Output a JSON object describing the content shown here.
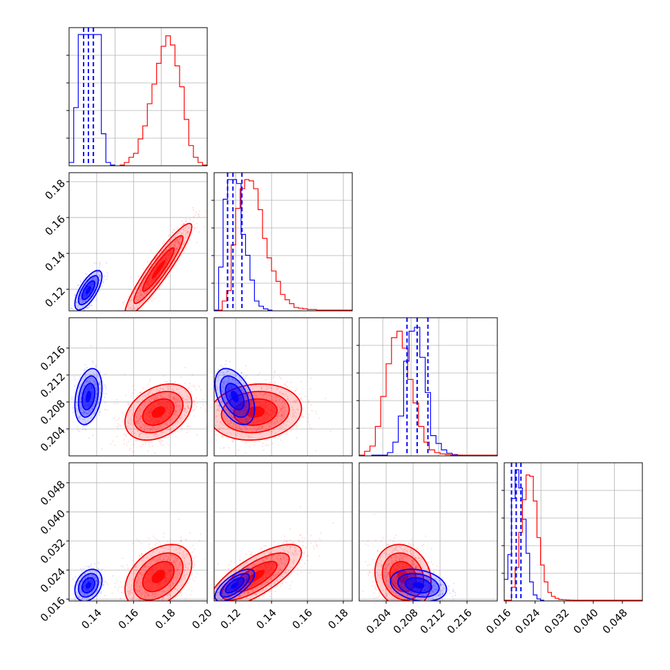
{
  "chart_data": {
    "type": "corner",
    "colors": {
      "blue": "#0000ff",
      "red": "#ff0000",
      "grid": "#b0b0b0"
    },
    "n_params": 4,
    "params": [
      {
        "range": [
          0.125,
          0.2
        ],
        "ticks": [
          0.14,
          0.16,
          0.18,
          0.2
        ],
        "tick_labels": [
          "0.14",
          "0.16",
          "0.18",
          "0.20"
        ]
      },
      {
        "range": [
          0.108,
          0.185
        ],
        "ticks": [
          0.12,
          0.14,
          0.16,
          0.18
        ],
        "tick_labels": [
          "0.12",
          "0.14",
          "0.16",
          "0.18"
        ]
      },
      {
        "range": [
          0.2,
          0.2205
        ],
        "ticks": [
          0.204,
          0.208,
          0.212,
          0.216
        ],
        "tick_labels": [
          "0.204",
          "0.208",
          "0.212",
          "0.216"
        ]
      },
      {
        "range": [
          0.0155,
          0.0535
        ],
        "ticks": [
          0.016,
          0.024,
          0.032,
          0.04,
          0.048
        ],
        "tick_labels": [
          "0.016",
          "0.024",
          "0.032",
          "0.040",
          "0.048"
        ]
      }
    ],
    "diag": [
      {
        "grid_x": [
          0.125,
          0.15,
          0.175,
          0.2
        ],
        "series": [
          {
            "name": "",
            "color": "#0000ff",
            "edges": [
              0.125,
              0.1275,
              0.13,
              0.1325,
              0.135,
              0.1375,
              0.14,
              0.1425,
              0.145,
              0.1475,
              0.15
            ],
            "counts": [
              0.02,
              0.44,
              1.0,
              1.0,
              1.0,
              1.0,
              1.0,
              0.24,
              0.02,
              0.0
            ],
            "quantiles": [
              0.1329,
              0.1355,
              0.1382
            ]
          },
          {
            "name": "",
            "color": "#ff0000",
            "edges": [
              0.1525,
              0.155,
              0.1575,
              0.16,
              0.1625,
              0.165,
              0.1675,
              0.17,
              0.1725,
              0.175,
              0.1775,
              0.18,
              0.1825,
              0.185,
              0.1875,
              0.19,
              0.1925,
              0.195,
              0.1975,
              0.2
            ],
            "counts": [
              0.0,
              0.02,
              0.06,
              0.09,
              0.2,
              0.3,
              0.47,
              0.62,
              0.78,
              0.91,
              0.99,
              0.92,
              0.76,
              0.6,
              0.35,
              0.15,
              0.06,
              0.02,
              0.0
            ]
          }
        ]
      },
      {
        "grid_x": [
          0.12,
          0.14,
          0.16,
          0.18
        ],
        "series": [
          {
            "name": "",
            "color": "#0000ff",
            "edges": [
              0.108,
              0.1105,
              0.113,
              0.1155,
              0.118,
              0.1205,
              0.123,
              0.1255,
              0.128,
              0.1305,
              0.133,
              0.1355,
              0.138,
              0.1405
            ],
            "counts": [
              0.0,
              0.33,
              0.85,
              1.0,
              1.0,
              0.97,
              0.58,
              0.42,
              0.23,
              0.07,
              0.03,
              0.01,
              0.0
            ]
          },
          {
            "name": "",
            "color": "#ff0000",
            "edges": [
              0.11,
              0.1125,
              0.115,
              0.1175,
              0.12,
              0.1225,
              0.125,
              0.1275,
              0.13,
              0.1325,
              0.135,
              0.1375,
              0.14,
              0.1425,
              0.145,
              0.1475,
              0.15,
              0.1525,
              0.155,
              0.1575,
              0.16,
              0.1625,
              0.165,
              0.1675,
              0.17,
              0.1725,
              0.175,
              0.1775,
              0.18,
              0.1825,
              0.185
            ],
            "counts": [
              0.0,
              0.07,
              0.15,
              0.5,
              0.78,
              0.93,
              1.0,
              0.99,
              0.93,
              0.77,
              0.55,
              0.4,
              0.3,
              0.22,
              0.12,
              0.08,
              0.05,
              0.02,
              0.015,
              0.01,
              0.005,
              0.005,
              0.0,
              0.0,
              0.0,
              0.0,
              0.0,
              0.0,
              0.0,
              0.0
            ]
          }
        ],
        "quantiles_blue": [
          0.1155,
          0.1185,
          0.1235
        ]
      },
      {
        "grid_x": [
          0.2035,
          0.2077,
          0.2118,
          0.216
        ],
        "series": [
          {
            "name": "",
            "color": "#0000ff",
            "edges": [
              0.2018,
              0.2026,
              0.2034,
              0.2042,
              0.205,
              0.2058,
              0.2066,
              0.2074,
              0.2082,
              0.209,
              0.2098,
              0.2106,
              0.2114,
              0.2122,
              0.213,
              0.2138,
              0.2146,
              0.2154
            ],
            "counts": [
              0.0,
              0.0,
              0.0,
              0.02,
              0.1,
              0.3,
              0.72,
              0.95,
              0.98,
              0.75,
              0.48,
              0.15,
              0.09,
              0.04,
              0.015,
              0.005,
              0.0
            ]
          },
          {
            "name": "",
            "color": "#ff0000",
            "edges": [
              0.2,
              0.2008,
              0.2016,
              0.2024,
              0.2032,
              0.204,
              0.2048,
              0.2056,
              0.2064,
              0.2072,
              0.208,
              0.2088,
              0.2096,
              0.2104,
              0.2112,
              0.212,
              0.2128,
              0.2136,
              0.2144,
              0.2205
            ],
            "counts": [
              0.0,
              0.03,
              0.07,
              0.22,
              0.45,
              0.7,
              0.9,
              0.95,
              0.82,
              0.58,
              0.4,
              0.22,
              0.1,
              0.04,
              0.02,
              0.01,
              0.005,
              0.0,
              0.0
            ]
          }
        ],
        "quantiles_blue": [
          0.2071,
          0.2086,
          0.2102
        ]
      },
      {
        "grid_x": [
          0.0155,
          0.0256,
          0.0357,
          0.0458
        ],
        "series": [
          {
            "name": "",
            "color": "#0000ff",
            "edges": [
              0.0155,
              0.0165,
              0.0175,
              0.0185,
              0.0195,
              0.0205,
              0.0215,
              0.0225,
              0.0235,
              0.0245,
              0.0255,
              0.0265
            ],
            "counts": [
              0.16,
              0.35,
              0.78,
              1.0,
              0.86,
              0.62,
              0.36,
              0.14,
              0.04,
              0.01,
              0.0
            ]
          },
          {
            "name": "",
            "color": "#ff0000",
            "edges": [
              0.0155,
              0.0165,
              0.0175,
              0.0185,
              0.0195,
              0.0205,
              0.0215,
              0.0225,
              0.0235,
              0.0245,
              0.0255,
              0.0265,
              0.0275,
              0.0285,
              0.0295,
              0.0305,
              0.0315,
              0.0325,
              0.0335,
              0.0345,
              0.0535
            ],
            "counts": [
              0.0,
              0.0,
              0.1,
              0.25,
              0.52,
              0.77,
              0.96,
              0.95,
              0.76,
              0.48,
              0.27,
              0.14,
              0.06,
              0.03,
              0.015,
              0.006,
              0.004,
              0.002,
              0.001,
              0.0
            ]
          }
        ],
        "quantiles_blue": [
          0.0175,
          0.0188,
          0.0201
        ]
      }
    ],
    "pairs": [
      {
        "row": 1,
        "col": 0,
        "grid_x": [
          0.14,
          0.16,
          0.18
        ],
        "grid_y": [
          0.12,
          0.14,
          0.16,
          0.18
        ],
        "blue": {
          "mean": [
            0.1355,
            0.1195
          ],
          "sd": [
            0.003,
            0.0045
          ],
          "rho": 0.7,
          "n": 420
        },
        "red": {
          "mean": [
            0.1735,
            0.131
          ],
          "sd": [
            0.0074,
            0.0105
          ],
          "rho": 0.93,
          "n": 900
        }
      },
      {
        "row": 2,
        "col": 0,
        "grid_x": [
          0.14,
          0.16,
          0.18
        ],
        "grid_y": [
          0.204,
          0.208,
          0.212,
          0.216
        ],
        "blue": {
          "mean": [
            0.1355,
            0.2088
          ],
          "sd": [
            0.003,
            0.0017
          ],
          "rho": 0.3,
          "n": 420
        },
        "red": {
          "mean": [
            0.1735,
            0.2065
          ],
          "sd": [
            0.0074,
            0.0017
          ],
          "rho": 0.35,
          "n": 900
        }
      },
      {
        "row": 2,
        "col": 1,
        "grid_x": [
          0.12,
          0.14,
          0.16,
          0.18
        ],
        "grid_y": [
          0.204,
          0.208,
          0.212,
          0.216
        ],
        "blue": {
          "mean": [
            0.1195,
            0.2088
          ],
          "sd": [
            0.0045,
            0.0017
          ],
          "rho": -0.45,
          "n": 420
        },
        "red": {
          "mean": [
            0.131,
            0.2065
          ],
          "sd": [
            0.0105,
            0.0017
          ],
          "rho": 0.12,
          "n": 900
        }
      },
      {
        "row": 3,
        "col": 0,
        "grid_x": [
          0.14,
          0.16,
          0.18
        ],
        "grid_y": [
          0.016,
          0.024,
          0.032,
          0.04,
          0.048
        ],
        "blue": {
          "mean": [
            0.1355,
            0.0198
          ],
          "sd": [
            0.003,
            0.0018
          ],
          "rho": 0.3,
          "n": 420
        },
        "red": {
          "mean": [
            0.1735,
            0.0222
          ],
          "sd": [
            0.0074,
            0.0036
          ],
          "rho": 0.4,
          "n": 900
        }
      },
      {
        "row": 3,
        "col": 1,
        "grid_x": [
          0.12,
          0.14,
          0.16,
          0.18
        ],
        "grid_y": [
          0.016,
          0.024,
          0.032,
          0.04,
          0.048
        ],
        "blue": {
          "mean": [
            0.1195,
            0.0198
          ],
          "sd": [
            0.0045,
            0.0018
          ],
          "rho": 0.7,
          "n": 420
        },
        "red": {
          "mean": [
            0.131,
            0.0222
          ],
          "sd": [
            0.0105,
            0.0036
          ],
          "rho": 0.75,
          "n": 900
        }
      },
      {
        "row": 3,
        "col": 2,
        "grid_x": [
          0.204,
          0.208,
          0.212,
          0.216
        ],
        "grid_y": [
          0.016,
          0.024,
          0.032,
          0.04,
          0.048
        ],
        "blue": {
          "mean": [
            0.2088,
            0.0198
          ],
          "sd": [
            0.0017,
            0.0018
          ],
          "rho": -0.25,
          "n": 420
        },
        "red": {
          "mean": [
            0.2065,
            0.0222
          ],
          "sd": [
            0.0017,
            0.0036
          ],
          "rho": -0.15,
          "n": 900
        }
      }
    ],
    "grid": true
  }
}
